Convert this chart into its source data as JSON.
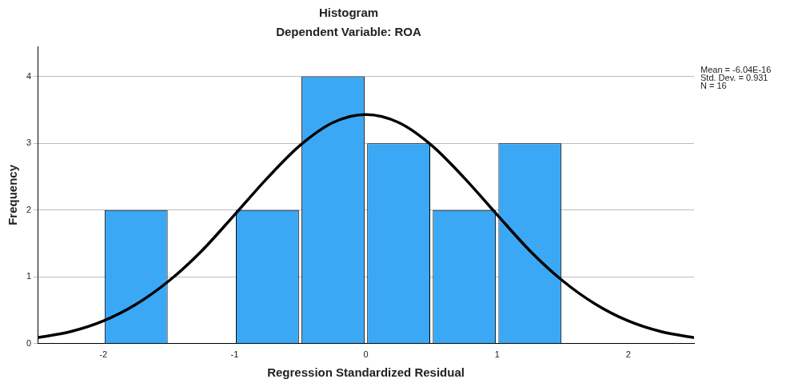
{
  "chart_data": {
    "type": "histogram",
    "title": "Histogram",
    "subtitle": "Dependent Variable: ROA",
    "xlabel": "Regression Standardized Residual",
    "ylabel": "Frequency",
    "bins": [
      -2,
      -1.5,
      -1,
      -0.5,
      0,
      0.5,
      1,
      1.5
    ],
    "values": [
      2,
      0,
      2,
      4,
      3,
      2,
      3
    ],
    "color": "#3aa8f5",
    "series": [
      {
        "type": "line",
        "color": "#000000",
        "x": [
          -2.5,
          -2.25,
          -2,
          -1.75,
          -1.5,
          -1.25,
          -1,
          -0.75,
          -0.5,
          -0.25,
          0,
          0.25,
          0.5,
          0.75,
          1,
          1.25,
          1.5,
          1.75,
          2,
          2.25,
          2.5
        ],
        "values": [
          0.09,
          0.18,
          0.34,
          0.59,
          0.94,
          1.39,
          1.93,
          2.48,
          2.97,
          3.31,
          3.43,
          3.31,
          2.97,
          2.48,
          1.93,
          1.39,
          0.94,
          0.59,
          0.34,
          0.18,
          0.09
        ]
      }
    ],
    "xlim": [
      -2.5,
      2.5
    ],
    "xticks": [
      -2,
      -1,
      0,
      1,
      2
    ],
    "ylim": [
      0,
      4.45
    ],
    "yticks": [
      0,
      1,
      2,
      3,
      4
    ],
    "grid": "y",
    "annotations": [
      "Mean = -6.04E-16",
      "Std. Dev. = 0.931",
      "N = 16"
    ]
  }
}
